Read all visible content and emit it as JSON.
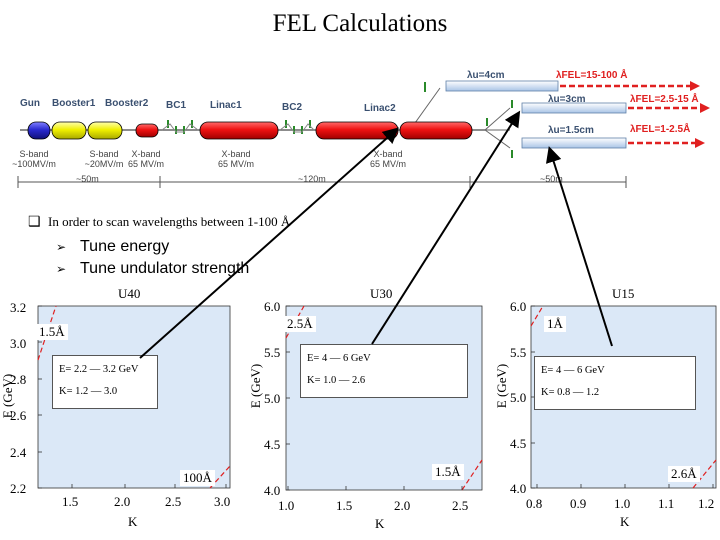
{
  "title": "FEL Calculations",
  "beamline": {
    "components": [
      {
        "label": "Gun"
      },
      {
        "label": "Booster1"
      },
      {
        "label": "Booster2"
      },
      {
        "label": "BC1"
      },
      {
        "label": "Linac1"
      },
      {
        "label": "BC2"
      },
      {
        "label": "Linac2"
      }
    ],
    "band_labels": [
      {
        "text": "S-band\n~100MV/m"
      },
      {
        "text": "S-band\n~20MV/m"
      },
      {
        "text": "X-band\n65 MV/m"
      },
      {
        "text": "X-band\n65 MV/m"
      },
      {
        "text": "X-band\n65 MV/m"
      }
    ],
    "lengths": [
      "~50m",
      "~120m",
      "~50m"
    ],
    "undulators": [
      {
        "period": "λu=4cm",
        "wavelength": "λFEL=15-100 Å"
      },
      {
        "period": "λu=3cm",
        "wavelength": "λFEL=2.5-15 Å"
      },
      {
        "period": "λu=1.5cm",
        "wavelength": "λFEL=1-2.5Å"
      }
    ],
    "colors": {
      "gun": "#2a2ad0",
      "booster": "#f0f000",
      "linac": "#ee1111",
      "undulator": "#cfe0f5",
      "fel_red": "#e02020"
    }
  },
  "bullet": {
    "text": "In order to scan wavelengths between 1-100 Å"
  },
  "sub_bullets": [
    "Tune energy",
    "Tune undulator strength"
  ],
  "plots": [
    {
      "title": "U40",
      "xlabel": "K",
      "ylabel": "E (GeV)",
      "x_ticks": [
        "1.5",
        "2.0",
        "2.5",
        "3.0"
      ],
      "y_ticks": [
        "3.2",
        "3.0",
        "2.8",
        "2.6",
        "2.4",
        "2.2"
      ],
      "wavelength_top": "1.5Å",
      "wavelength_bottom": "100Å",
      "energy_range": "E= 2.2 — 3.2 GeV",
      "k_range": "K= 1.2 — 3.0"
    },
    {
      "title": "U30",
      "xlabel": "K",
      "ylabel": "E (GeV)",
      "x_ticks": [
        "1.0",
        "1.5",
        "2.0",
        "2.5"
      ],
      "y_ticks": [
        "6.0",
        "5.5",
        "5.0",
        "4.5",
        "4.0"
      ],
      "wavelength_top": "2.5Å",
      "wavelength_bottom": "1.5Å",
      "energy_range": "E= 4 — 6 GeV",
      "k_range": "K= 1.0 — 2.6"
    },
    {
      "title": "U15",
      "xlabel": "K",
      "ylabel": "E (GeV)",
      "x_ticks": [
        "0.8",
        "0.9",
        "1.0",
        "1.1",
        "1.2"
      ],
      "y_ticks": [
        "6.0",
        "5.5",
        "5.0",
        "4.5",
        "4.0"
      ],
      "wavelength_top": "1Å",
      "wavelength_bottom": "2.6Å",
      "energy_range": "E= 4 — 6 GeV",
      "k_range": "K= 0.8 — 1.2"
    }
  ]
}
